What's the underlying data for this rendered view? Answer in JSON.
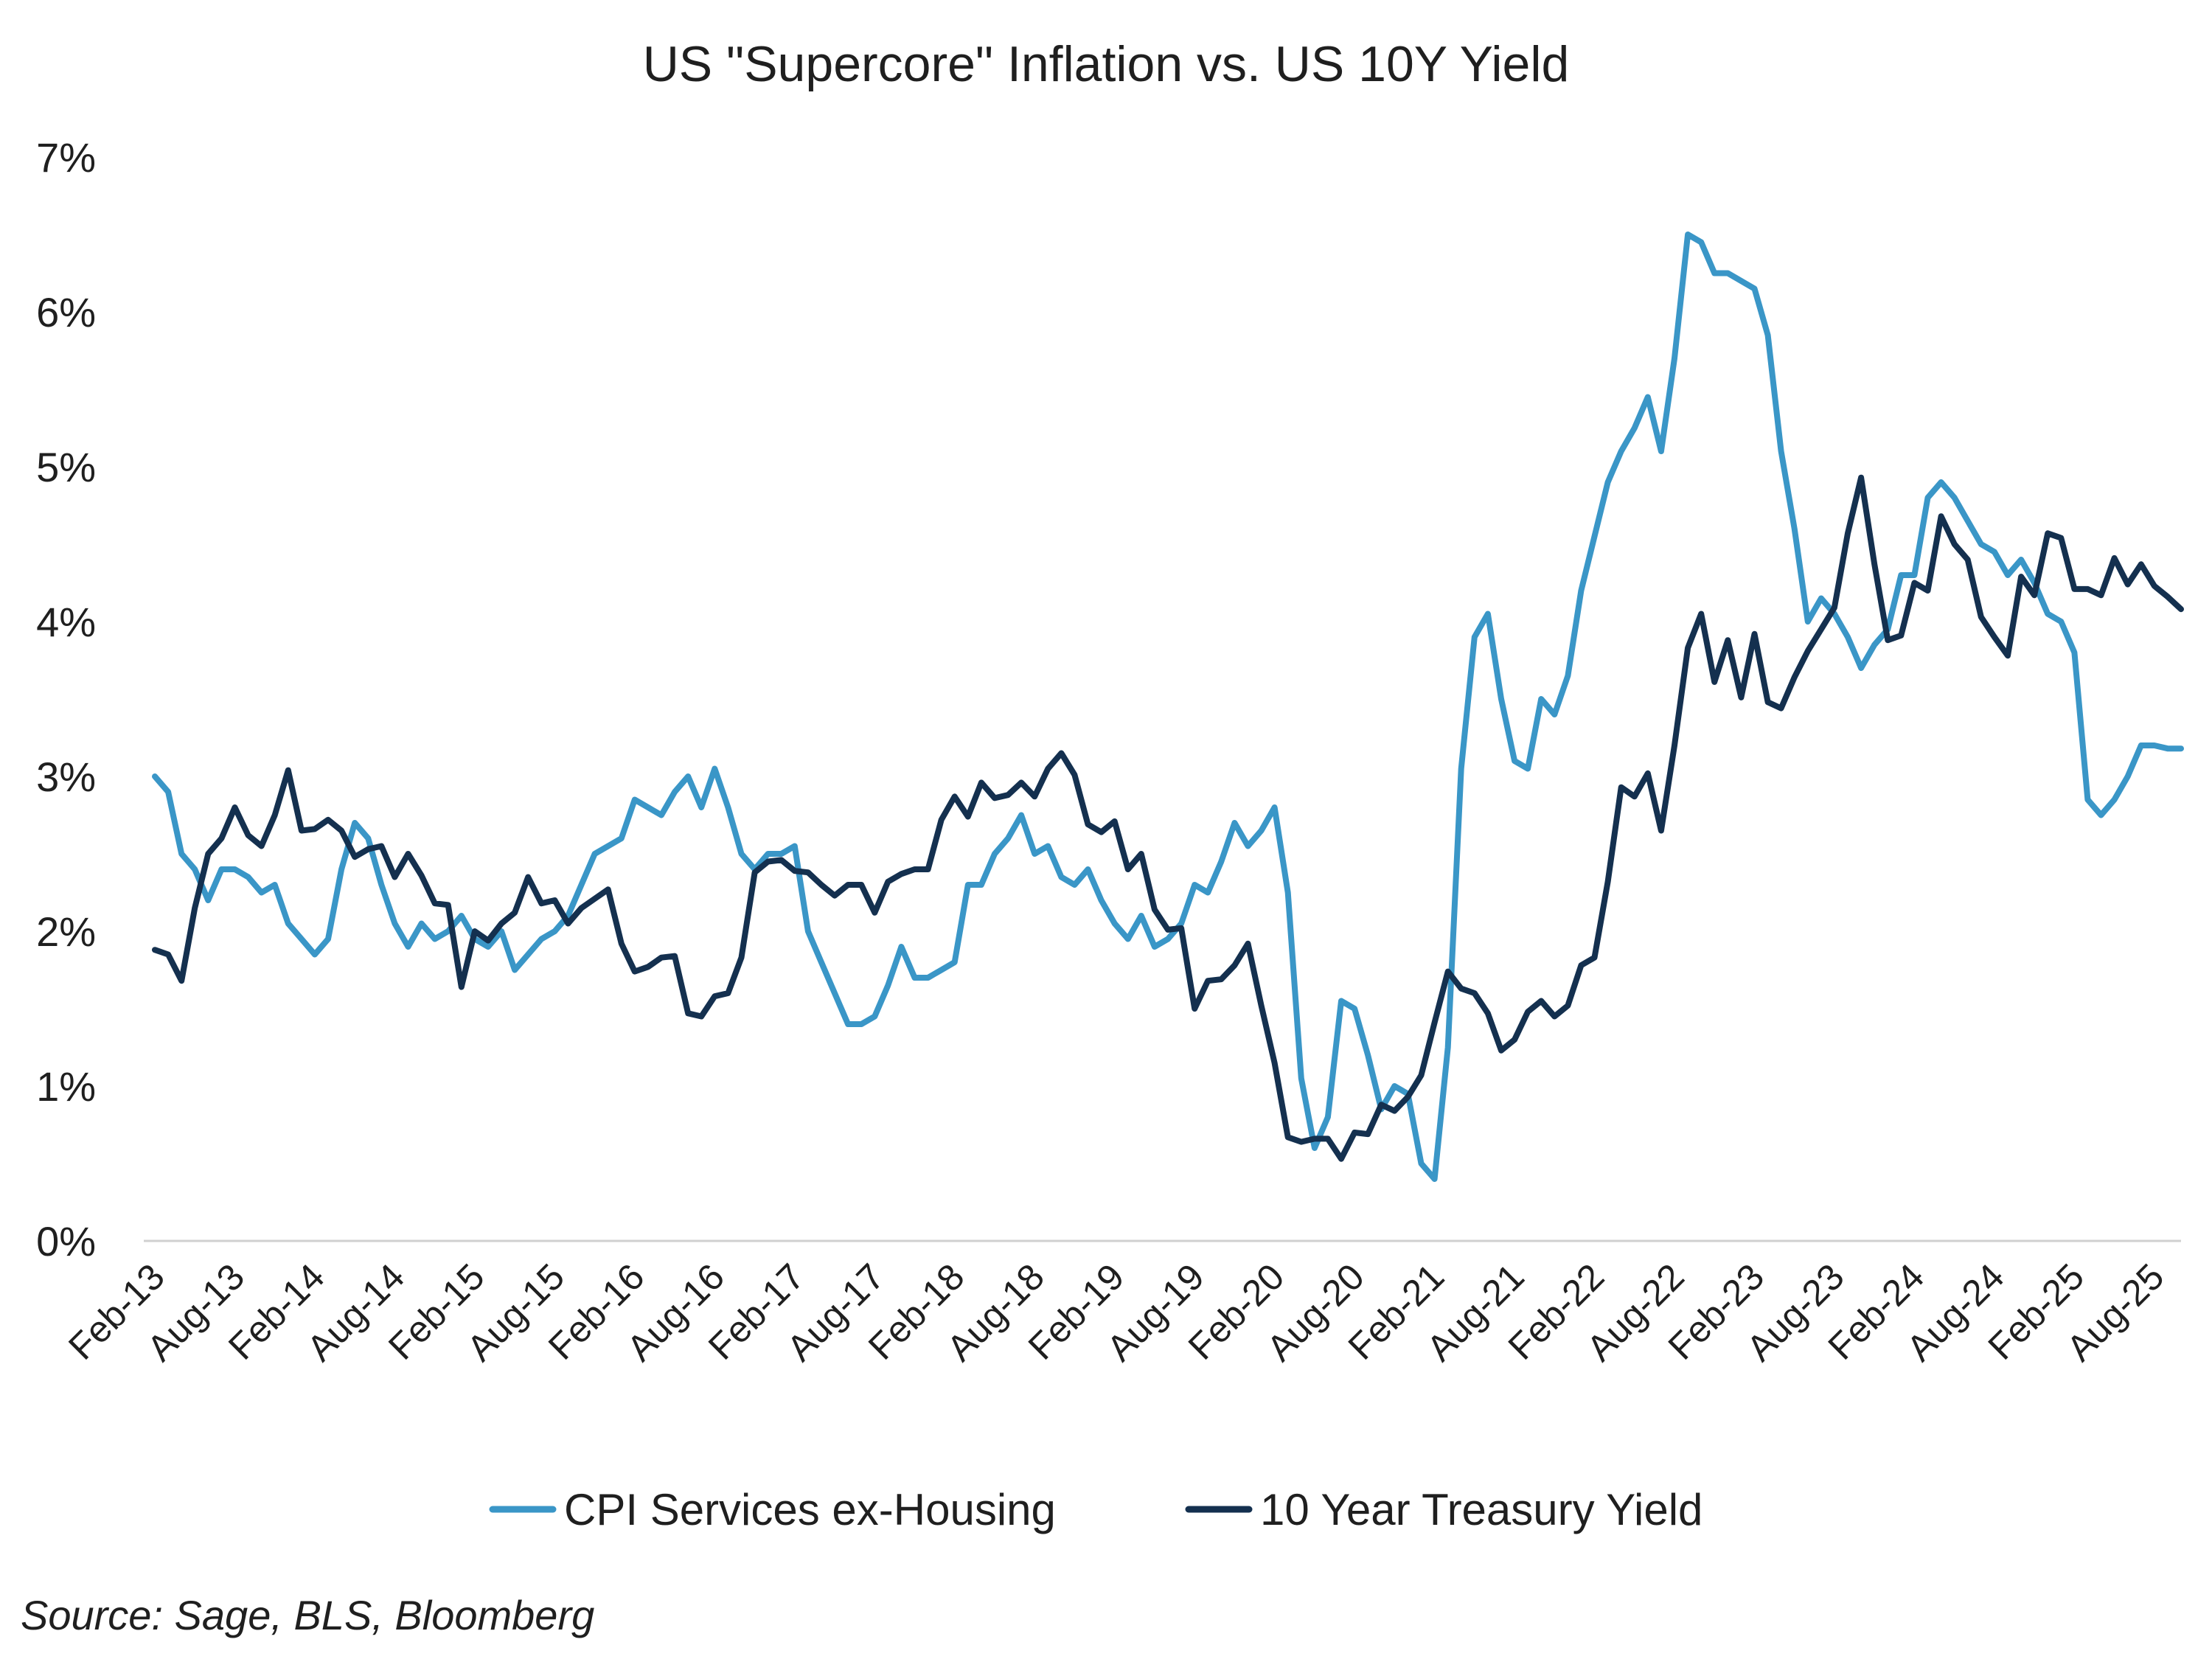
{
  "chart_data": {
    "type": "line",
    "title": "US \"Supercore\" Inflation vs. US 10Y Yield",
    "source": "Source: Sage, BLS, Bloomberg",
    "ylim": [
      0,
      7
    ],
    "yticks": [
      "0%",
      "1%",
      "2%",
      "3%",
      "4%",
      "5%",
      "6%",
      "7%"
    ],
    "x_start": "Feb-13",
    "x_end": "Oct-25",
    "xticks": [
      "Feb-13",
      "Aug-13",
      "Feb-14",
      "Aug-14",
      "Feb-15",
      "Aug-15",
      "Feb-16",
      "Aug-16",
      "Feb-17",
      "Aug-17",
      "Feb-18",
      "Aug-18",
      "Feb-19",
      "Aug-19",
      "Feb-20",
      "Aug-20",
      "Feb-21",
      "Aug-21",
      "Feb-22",
      "Aug-22",
      "Feb-23",
      "Aug-23",
      "Feb-24",
      "Aug-24",
      "Feb-25",
      "Aug-25"
    ],
    "legend_position": "bottom",
    "grid": false,
    "colors": {
      "cpi": "#3a96c7",
      "yield": "#14304f",
      "axis": "#d0d0d0"
    },
    "series": [
      {
        "name": "CPI Services ex-Housing",
        "values": [
          3.0,
          2.9,
          2.5,
          2.4,
          2.2,
          2.4,
          2.4,
          2.35,
          2.25,
          2.3,
          2.05,
          1.95,
          1.85,
          1.95,
          2.4,
          2.7,
          2.6,
          2.3,
          2.05,
          1.9,
          2.05,
          1.95,
          2.0,
          2.1,
          1.95,
          1.9,
          2.0,
          1.75,
          1.85,
          1.95,
          2.0,
          2.1,
          2.3,
          2.5,
          2.55,
          2.6,
          2.85,
          2.8,
          2.75,
          2.9,
          3.0,
          2.8,
          3.05,
          2.8,
          2.5,
          2.4,
          2.5,
          2.5,
          2.55,
          2.0,
          1.8,
          1.6,
          1.4,
          1.4,
          1.45,
          1.65,
          1.9,
          1.7,
          1.7,
          1.75,
          1.8,
          2.3,
          2.3,
          2.5,
          2.6,
          2.75,
          2.5,
          2.55,
          2.35,
          2.3,
          2.4,
          2.2,
          2.05,
          1.95,
          2.1,
          1.9,
          1.95,
          2.05,
          2.3,
          2.25,
          2.45,
          2.7,
          2.55,
          2.65,
          2.8,
          2.25,
          1.05,
          0.6,
          0.8,
          1.55,
          1.5,
          1.2,
          0.85,
          1.0,
          0.95,
          0.5,
          0.4,
          1.25,
          3.05,
          3.9,
          4.05,
          3.5,
          3.1,
          3.05,
          3.5,
          3.4,
          3.65,
          4.2,
          4.55,
          4.9,
          5.1,
          5.25,
          5.45,
          5.1,
          5.7,
          6.5,
          6.45,
          6.25,
          6.25,
          6.2,
          6.15,
          5.85,
          5.1,
          4.6,
          4.0,
          4.15,
          4.05,
          3.9,
          3.7,
          3.85,
          3.95,
          4.3,
          4.3,
          4.8,
          4.9,
          4.8,
          4.65,
          4.5,
          4.45,
          4.3,
          4.4,
          4.25,
          4.05,
          4.0,
          3.8,
          2.85,
          2.75,
          2.85,
          3.0,
          3.2,
          3.2,
          3.18,
          3.18
        ]
      },
      {
        "name": "10 Year Treasury Yield",
        "values": [
          1.88,
          1.85,
          1.68,
          2.15,
          2.5,
          2.6,
          2.8,
          2.62,
          2.55,
          2.75,
          3.04,
          2.65,
          2.66,
          2.72,
          2.65,
          2.48,
          2.53,
          2.55,
          2.35,
          2.5,
          2.36,
          2.18,
          2.17,
          1.64,
          2.0,
          1.94,
          2.05,
          2.12,
          2.35,
          2.18,
          2.2,
          2.05,
          2.15,
          2.21,
          2.27,
          1.92,
          1.74,
          1.77,
          1.83,
          1.84,
          1.47,
          1.45,
          1.58,
          1.6,
          1.83,
          2.38,
          2.45,
          2.46,
          2.39,
          2.38,
          2.3,
          2.23,
          2.3,
          2.3,
          2.12,
          2.32,
          2.37,
          2.4,
          2.4,
          2.72,
          2.87,
          2.74,
          2.96,
          2.86,
          2.88,
          2.96,
          2.87,
          3.05,
          3.15,
          3.01,
          2.69,
          2.64,
          2.71,
          2.4,
          2.5,
          2.14,
          2.01,
          2.02,
          1.5,
          1.68,
          1.69,
          1.78,
          1.92,
          1.52,
          1.15,
          0.67,
          0.64,
          0.66,
          0.66,
          0.53,
          0.7,
          0.69,
          0.88,
          0.84,
          0.93,
          1.07,
          1.41,
          1.74,
          1.63,
          1.6,
          1.47,
          1.23,
          1.3,
          1.48,
          1.55,
          1.45,
          1.52,
          1.78,
          1.83,
          2.32,
          2.93,
          2.87,
          3.02,
          2.65,
          3.2,
          3.83,
          4.05,
          3.61,
          3.88,
          3.51,
          3.92,
          3.48,
          3.44,
          3.64,
          3.81,
          3.95,
          4.09,
          4.57,
          4.93,
          4.37,
          3.88,
          3.91,
          4.25,
          4.2,
          4.68,
          4.5,
          4.4,
          4.03,
          3.9,
          3.78,
          4.29,
          4.17,
          4.57,
          4.54,
          4.21,
          4.21,
          4.17,
          4.41,
          4.24,
          4.37,
          4.23,
          4.16,
          4.08
        ]
      }
    ]
  }
}
